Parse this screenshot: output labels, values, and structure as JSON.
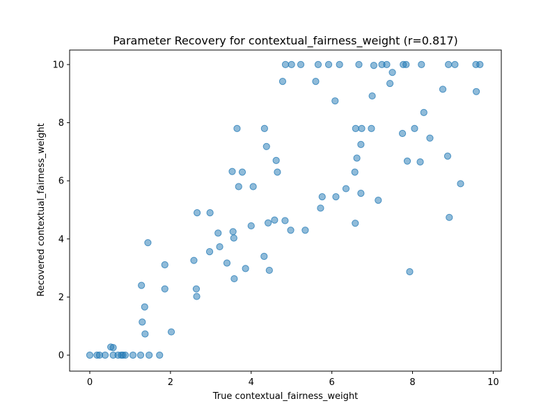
{
  "chart_data": {
    "type": "scatter",
    "title": "Parameter Recovery for contextual_fairness_weight (r=0.817)",
    "xlabel": "True contextual_fairness_weight",
    "ylabel": "Recovered contextual_fairness_weight",
    "xlim": [
      -0.5,
      10.2
    ],
    "ylim": [
      -0.55,
      10.5
    ],
    "xticks": [
      0,
      2,
      4,
      6,
      8,
      10
    ],
    "yticks": [
      0,
      2,
      4,
      6,
      8,
      10
    ],
    "grid": false,
    "marker_color": "#1f77b4",
    "marker_alpha": 0.5,
    "points": [
      [
        0.0,
        0.0
      ],
      [
        0.18,
        0.0
      ],
      [
        0.24,
        0.0
      ],
      [
        0.38,
        0.0
      ],
      [
        0.58,
        0.0
      ],
      [
        0.7,
        0.0
      ],
      [
        0.78,
        0.0
      ],
      [
        0.82,
        0.0
      ],
      [
        0.88,
        0.0
      ],
      [
        1.07,
        0.0
      ],
      [
        1.26,
        0.0
      ],
      [
        1.47,
        0.0
      ],
      [
        1.73,
        0.0
      ],
      [
        0.52,
        0.28
      ],
      [
        0.58,
        0.26
      ],
      [
        1.37,
        0.73
      ],
      [
        2.02,
        0.8
      ],
      [
        1.3,
        1.14
      ],
      [
        1.36,
        1.66
      ],
      [
        1.28,
        2.4
      ],
      [
        1.44,
        3.87
      ],
      [
        1.86,
        2.28
      ],
      [
        1.86,
        3.11
      ],
      [
        2.58,
        3.26
      ],
      [
        2.64,
        2.28
      ],
      [
        2.65,
        2.02
      ],
      [
        2.66,
        4.9
      ],
      [
        2.98,
        4.9
      ],
      [
        2.97,
        3.56
      ],
      [
        3.18,
        4.2
      ],
      [
        3.22,
        3.73
      ],
      [
        3.4,
        3.17
      ],
      [
        3.53,
        6.32
      ],
      [
        3.55,
        4.25
      ],
      [
        3.57,
        4.03
      ],
      [
        3.58,
        2.63
      ],
      [
        3.65,
        7.8
      ],
      [
        3.69,
        5.8
      ],
      [
        3.78,
        6.3
      ],
      [
        3.86,
        2.98
      ],
      [
        4.0,
        4.45
      ],
      [
        4.05,
        5.8
      ],
      [
        4.32,
        3.4
      ],
      [
        4.33,
        7.8
      ],
      [
        4.38,
        7.18
      ],
      [
        4.42,
        4.55
      ],
      [
        4.45,
        2.92
      ],
      [
        4.58,
        4.65
      ],
      [
        4.62,
        6.7
      ],
      [
        4.65,
        6.3
      ],
      [
        4.78,
        9.42
      ],
      [
        4.84,
        4.63
      ],
      [
        4.85,
        10.0
      ],
      [
        4.98,
        4.3
      ],
      [
        5.0,
        10.0
      ],
      [
        5.23,
        10.0
      ],
      [
        5.34,
        4.3
      ],
      [
        5.6,
        9.42
      ],
      [
        5.66,
        10.0
      ],
      [
        5.72,
        5.06
      ],
      [
        5.76,
        5.45
      ],
      [
        5.92,
        10.0
      ],
      [
        6.08,
        8.75
      ],
      [
        6.1,
        5.45
      ],
      [
        6.19,
        10.0
      ],
      [
        6.35,
        5.73
      ],
      [
        6.57,
        6.3
      ],
      [
        6.58,
        4.54
      ],
      [
        6.59,
        7.8
      ],
      [
        6.62,
        6.78
      ],
      [
        6.67,
        10.0
      ],
      [
        6.72,
        5.57
      ],
      [
        6.72,
        7.25
      ],
      [
        6.74,
        7.8
      ],
      [
        6.98,
        7.8
      ],
      [
        7.0,
        8.92
      ],
      [
        7.04,
        9.97
      ],
      [
        7.15,
        5.33
      ],
      [
        7.24,
        10.0
      ],
      [
        7.36,
        10.0
      ],
      [
        7.44,
        9.35
      ],
      [
        7.5,
        9.73
      ],
      [
        7.75,
        7.63
      ],
      [
        7.77,
        10.0
      ],
      [
        7.84,
        10.0
      ],
      [
        7.87,
        6.68
      ],
      [
        7.93,
        2.87
      ],
      [
        8.05,
        7.8
      ],
      [
        8.19,
        6.65
      ],
      [
        8.22,
        10.0
      ],
      [
        8.28,
        8.35
      ],
      [
        8.43,
        7.47
      ],
      [
        8.75,
        9.15
      ],
      [
        8.87,
        6.85
      ],
      [
        8.89,
        10.0
      ],
      [
        8.91,
        4.74
      ],
      [
        9.05,
        10.0
      ],
      [
        9.19,
        5.9
      ],
      [
        9.57,
        10.0
      ],
      [
        9.58,
        9.07
      ],
      [
        9.67,
        10.0
      ]
    ]
  }
}
